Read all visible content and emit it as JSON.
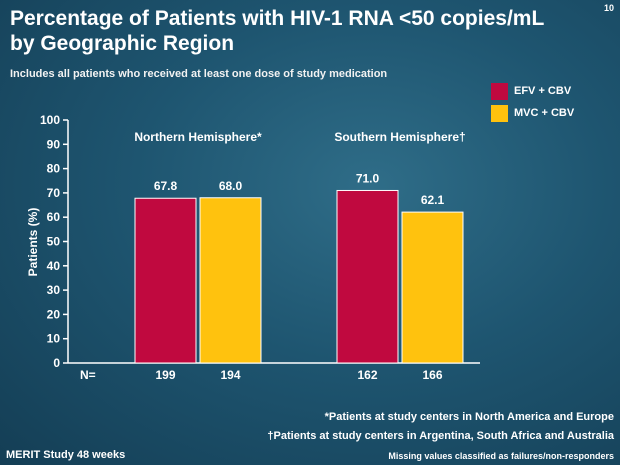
{
  "slide_number": "10",
  "title_line1": "Percentage of Patients with HIV-1 RNA <50 copies/mL",
  "title_line2": "by Geographic Region",
  "subtitle": "Includes all patients who received at least one dose of study medication",
  "colors": {
    "efv": "#c0093f",
    "mvc": "#ffc20e"
  },
  "chart_data": {
    "type": "bar",
    "ylabel": "Patients (%)",
    "ylim": [
      0,
      100
    ],
    "yticks": [
      0,
      10,
      20,
      30,
      40,
      50,
      60,
      70,
      80,
      90,
      100
    ],
    "categories": [
      "Northern Hemisphere*",
      "Southern Hemisphere†"
    ],
    "series": [
      {
        "name": "EFV + CBV",
        "values": [
          67.8,
          71.0
        ],
        "labels": [
          "67.8",
          "71.0"
        ],
        "n": [
          "199",
          "162"
        ]
      },
      {
        "name": "MVC + CBV",
        "values": [
          68.0,
          62.1
        ],
        "labels": [
          "68.0",
          "62.1"
        ],
        "n": [
          "194",
          "166"
        ]
      }
    ],
    "n_label": "N=",
    "grid": false,
    "legend_position": "top-right"
  },
  "footnotes": {
    "north": "*Patients at study centers in North America and Europe",
    "south": "†Patients at study centers in Argentina, South Africa and Australia"
  },
  "study_label": "MERIT Study 48 weeks",
  "missing_note": "Missing values classified as failures/non-responders"
}
